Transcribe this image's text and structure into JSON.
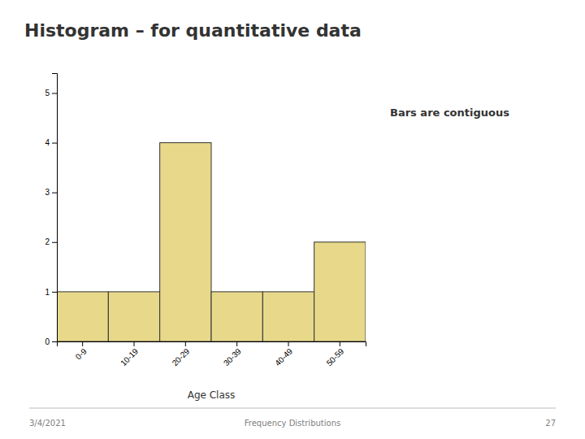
{
  "chart_data": {
    "type": "bar",
    "title": "Histogram – for quantitative data",
    "categories": [
      "0-9",
      "10-19",
      "20-29",
      "30-39",
      "40-49",
      "50-59"
    ],
    "values": [
      1,
      1,
      4,
      1,
      1,
      2
    ],
    "color": "#E8D98A",
    "xlabel": "Age Class",
    "ylim": [
      0,
      5.4
    ],
    "yticks": [
      0,
      1,
      2,
      3,
      4,
      5
    ],
    "grid": false,
    "annotation": "Bars are contiguous",
    "footer": [
      "3/4/2021",
      "Frequency Distributions",
      "27"
    ]
  }
}
